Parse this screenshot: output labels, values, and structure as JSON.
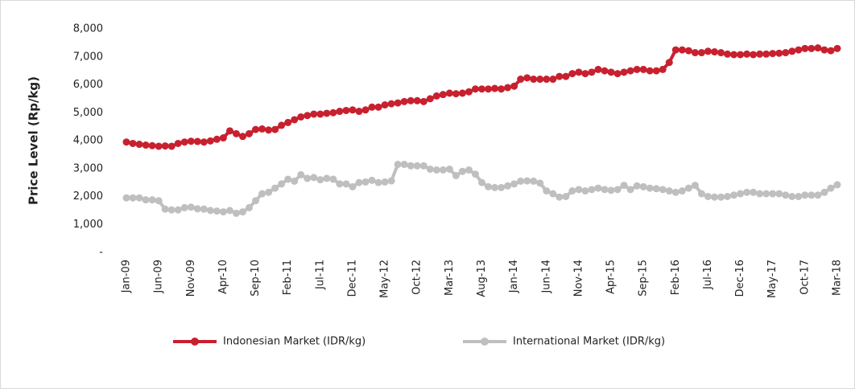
{
  "chart_data": {
    "type": "line",
    "y_label": "Price Level (Rp/kg)",
    "categories": [
      "Jan-09",
      null,
      null,
      null,
      null,
      "Jun-09",
      null,
      null,
      null,
      null,
      "Nov-09",
      null,
      null,
      null,
      null,
      "Apr-10",
      null,
      null,
      null,
      null,
      "Sep-10",
      null,
      null,
      null,
      null,
      "Feb-11",
      null,
      null,
      null,
      null,
      "Jul-11",
      null,
      null,
      null,
      null,
      "Dec-11",
      null,
      null,
      null,
      null,
      "May-12",
      null,
      null,
      null,
      null,
      "Oct-12",
      null,
      null,
      null,
      null,
      "Mar-13",
      null,
      null,
      null,
      null,
      "Aug-13",
      null,
      null,
      null,
      null,
      "Jan-14",
      null,
      null,
      null,
      null,
      "Jun-14",
      null,
      null,
      null,
      null,
      "Nov-14",
      null,
      null,
      null,
      null,
      "Apr-15",
      null,
      null,
      null,
      null,
      "Sep-15",
      null,
      null,
      null,
      null,
      "Feb-16",
      null,
      null,
      null,
      null,
      "Jul-16",
      null,
      null,
      null,
      null,
      "Dec-16",
      null,
      null,
      null,
      null,
      "May-17",
      null,
      null,
      null,
      null,
      "Oct-17",
      null,
      null,
      null,
      null,
      "Mar-18"
    ],
    "series": [
      {
        "name": "Indonesian Market (IDR/kg)",
        "color": "#c8202f",
        "values": [
          3950,
          3900,
          3870,
          3840,
          3820,
          3800,
          3810,
          3800,
          3900,
          3950,
          3980,
          3970,
          3950,
          3990,
          4050,
          4100,
          4350,
          4250,
          4150,
          4250,
          4400,
          4420,
          4380,
          4400,
          4550,
          4650,
          4750,
          4850,
          4900,
          4950,
          4950,
          4980,
          5000,
          5050,
          5080,
          5100,
          5050,
          5100,
          5200,
          5200,
          5280,
          5320,
          5350,
          5400,
          5430,
          5430,
          5400,
          5500,
          5600,
          5650,
          5700,
          5680,
          5700,
          5750,
          5850,
          5850,
          5850,
          5870,
          5850,
          5900,
          5950,
          6200,
          6250,
          6200,
          6200,
          6200,
          6200,
          6300,
          6300,
          6400,
          6450,
          6400,
          6450,
          6550,
          6500,
          6450,
          6400,
          6450,
          6500,
          6550,
          6550,
          6500,
          6500,
          6550,
          6800,
          7250,
          7250,
          7220,
          7150,
          7150,
          7200,
          7180,
          7150,
          7100,
          7080,
          7080,
          7100,
          7080,
          7100,
          7100,
          7120,
          7130,
          7150,
          7200,
          7250,
          7300,
          7300,
          7320,
          7250,
          7220,
          7300
        ]
      },
      {
        "name": "International Market (IDR/kg)",
        "color": "#bfbfbf",
        "values": [
          1950,
          1950,
          1950,
          1880,
          1880,
          1850,
          1550,
          1520,
          1520,
          1600,
          1620,
          1560,
          1550,
          1500,
          1480,
          1450,
          1500,
          1400,
          1450,
          1600,
          1850,
          2100,
          2150,
          2300,
          2450,
          2620,
          2550,
          2780,
          2650,
          2680,
          2600,
          2650,
          2620,
          2450,
          2450,
          2350,
          2500,
          2520,
          2580,
          2500,
          2520,
          2560,
          3150,
          3150,
          3100,
          3100,
          3100,
          2980,
          2950,
          2950,
          2980,
          2750,
          2900,
          2950,
          2800,
          2500,
          2350,
          2320,
          2320,
          2380,
          2450,
          2550,
          2560,
          2550,
          2480,
          2200,
          2100,
          1980,
          2000,
          2200,
          2250,
          2200,
          2250,
          2300,
          2250,
          2220,
          2250,
          2400,
          2250,
          2380,
          2350,
          2300,
          2280,
          2250,
          2200,
          2150,
          2200,
          2300,
          2400,
          2100,
          2000,
          1980,
          1980,
          2000,
          2050,
          2100,
          2150,
          2150,
          2100,
          2100,
          2100,
          2100,
          2050,
          2000,
          2000,
          2050,
          2050,
          2050,
          2150,
          2300,
          2420
        ]
      }
    ],
    "ylim": [
      0,
      8000
    ],
    "yticks": [
      {
        "value": 0,
        "label": "-"
      },
      {
        "value": 1000,
        "label": "1,000"
      },
      {
        "value": 2000,
        "label": "2,000"
      },
      {
        "value": 3000,
        "label": "3,000"
      },
      {
        "value": 4000,
        "label": "4,000"
      },
      {
        "value": 5000,
        "label": "5,000"
      },
      {
        "value": 6000,
        "label": "6,000"
      },
      {
        "value": 7000,
        "label": "7,000"
      },
      {
        "value": 8000,
        "label": "8,000"
      }
    ],
    "legend": "bottom"
  }
}
